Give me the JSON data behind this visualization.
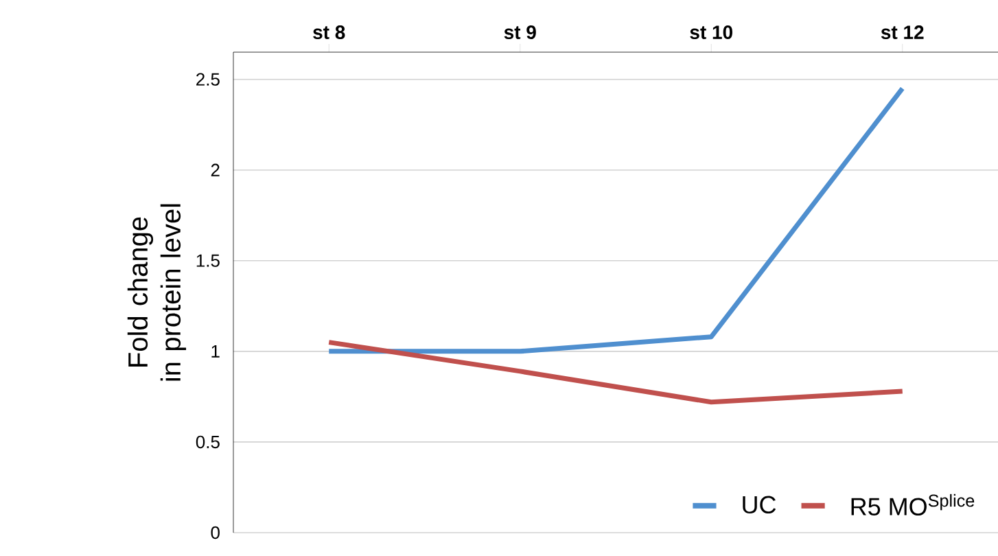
{
  "chart_data": {
    "type": "line",
    "ylabel": "Fold change in protein level",
    "categories": [
      "st 8",
      "st 9",
      "st 10",
      "st 12"
    ],
    "series": [
      {
        "name": "UC",
        "color": "#4f8fcf",
        "values": [
          1.0,
          1.0,
          1.08,
          2.45
        ]
      },
      {
        "name": "R5 MO$^{Splice}$",
        "color": "#c0504d",
        "values": [
          1.05,
          0.89,
          0.72,
          0.78
        ]
      }
    ],
    "ylim": [
      0,
      2.65
    ],
    "yticks": [
      0,
      0.5,
      1,
      1.5,
      2,
      2.5
    ],
    "grid": "y",
    "legend": "bottom right",
    "marker": "none",
    "line_style": "solid"
  }
}
